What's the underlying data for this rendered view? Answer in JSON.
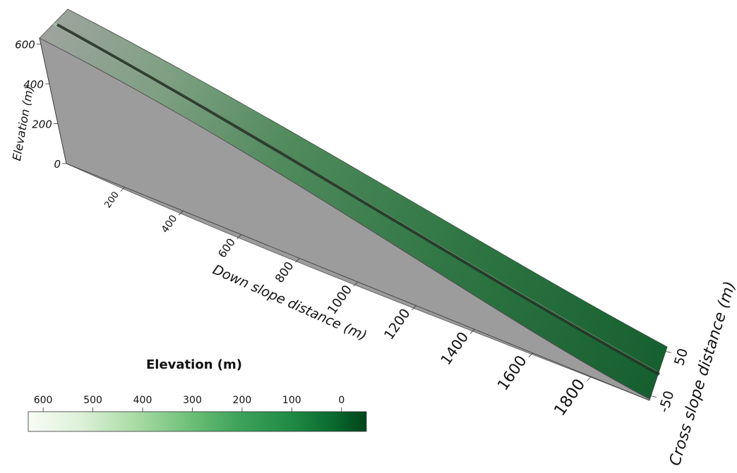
{
  "chart_data": {
    "type": "surface3d",
    "title": "",
    "x_axis": {
      "label": "Down slope distance (m)",
      "ticks": [
        200,
        400,
        600,
        800,
        1000,
        1200,
        1400,
        1600,
        1800
      ],
      "range": [
        0,
        2000
      ]
    },
    "y_axis": {
      "label": "Cross slope distance (m)",
      "ticks": [
        -50,
        50
      ],
      "range": [
        -60,
        60
      ]
    },
    "z_axis": {
      "label": "Elevation (m)",
      "ticks": [
        0,
        200,
        400,
        600
      ],
      "range": [
        0,
        630
      ]
    },
    "surface": {
      "description_values": {
        "down_slope_x": [
          0,
          250,
          500,
          750,
          1000,
          1250,
          1500,
          1750,
          2000
        ],
        "elevation_z": [
          625,
          520,
          420,
          330,
          250,
          180,
          115,
          55,
          0
        ]
      },
      "channel_center_cross_slope": 0,
      "side_wall_color": "#9c9c9c"
    },
    "colorbar": {
      "title": "Elevation (m)",
      "ticks": [
        600,
        500,
        400,
        300,
        200,
        100,
        0
      ],
      "range": [
        630,
        -50
      ],
      "colors": [
        "#f7fcf5",
        "#c7e9c0",
        "#74c476",
        "#41ab5d",
        "#238b45",
        "#006d2c",
        "#00441b"
      ]
    }
  }
}
